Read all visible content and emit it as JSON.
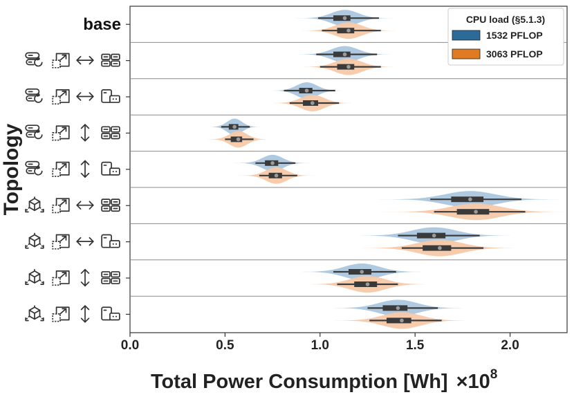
{
  "chart_data": {
    "type": "violin",
    "orientation": "horizontal",
    "xlabel": "Total Power Consumption [Wh]",
    "x_multiplier": "×10",
    "x_multiplier_exponent": "8",
    "ylabel": "Topology",
    "xlim": [
      0.0,
      2.3
    ],
    "xticks": [
      0.0,
      0.5,
      1.0,
      1.5,
      2.0
    ],
    "xtick_labels": [
      "0.0",
      "0.5",
      "1.0",
      "1.5",
      "2.0"
    ],
    "grid": false,
    "legend": {
      "title": "CPU load (§5.1.3)",
      "placement": "top-right",
      "entries": [
        "1532 PFLOP",
        "3063 PFLOP"
      ]
    },
    "series_colors": [
      "#aac6de",
      "#f5c9a8"
    ],
    "legend_colors": [
      "#2b6a99",
      "#e07b22"
    ],
    "categories": [
      {
        "label": "base",
        "icons": []
      },
      {
        "label": "",
        "icons": [
          "server-cycle-icon",
          "scale-out-icon",
          "horizontal-arrow-icon",
          "server-rack-multi-icon"
        ]
      },
      {
        "label": "",
        "icons": [
          "server-cycle-icon",
          "scale-out-icon",
          "horizontal-arrow-icon",
          "server-single-icon"
        ]
      },
      {
        "label": "",
        "icons": [
          "server-cycle-icon",
          "scale-out-icon",
          "vertical-arrow-icon",
          "server-rack-multi-icon"
        ]
      },
      {
        "label": "",
        "icons": [
          "server-cycle-icon",
          "scale-out-icon",
          "vertical-arrow-icon",
          "server-single-icon"
        ]
      },
      {
        "label": "",
        "icons": [
          "network-box-icon",
          "scale-out-icon",
          "horizontal-arrow-icon",
          "server-rack-multi-icon"
        ]
      },
      {
        "label": "",
        "icons": [
          "network-box-icon",
          "scale-out-icon",
          "horizontal-arrow-icon",
          "server-single-icon"
        ]
      },
      {
        "label": "",
        "icons": [
          "network-box-icon",
          "scale-out-icon",
          "vertical-arrow-icon",
          "server-rack-multi-icon"
        ]
      },
      {
        "label": "",
        "icons": [
          "network-box-icon",
          "scale-out-icon",
          "vertical-arrow-icon",
          "server-single-icon"
        ]
      }
    ],
    "series": [
      {
        "name": "1532 PFLOP",
        "violins": [
          {
            "min": 0.64,
            "q1": 1.07,
            "median": 1.13,
            "q3": 1.16,
            "max": 1.44,
            "wlo": 0.99,
            "whi": 1.31
          },
          {
            "min": 0.63,
            "q1": 1.07,
            "median": 1.13,
            "q3": 1.16,
            "max": 1.43,
            "wlo": 0.98,
            "whi": 1.3
          },
          {
            "min": 0.53,
            "q1": 0.89,
            "median": 0.93,
            "q3": 0.96,
            "max": 1.19,
            "wlo": 0.81,
            "whi": 1.08
          },
          {
            "min": 0.31,
            "q1": 0.52,
            "median": 0.55,
            "q3": 0.57,
            "max": 0.7,
            "wlo": 0.48,
            "whi": 0.63
          },
          {
            "min": 0.42,
            "q1": 0.71,
            "median": 0.75,
            "q3": 0.78,
            "max": 0.95,
            "wlo": 0.66,
            "whi": 0.87
          },
          {
            "min": 1.0,
            "q1": 1.69,
            "median": 1.79,
            "q3": 1.86,
            "max": 2.27,
            "wlo": 1.58,
            "whi": 2.06
          },
          {
            "min": 0.9,
            "q1": 1.51,
            "median": 1.6,
            "q3": 1.66,
            "max": 2.03,
            "wlo": 1.41,
            "whi": 1.84
          },
          {
            "min": 0.69,
            "q1": 1.15,
            "median": 1.22,
            "q3": 1.27,
            "max": 1.55,
            "wlo": 1.07,
            "whi": 1.4
          },
          {
            "min": 0.8,
            "q1": 1.33,
            "median": 1.41,
            "q3": 1.46,
            "max": 1.79,
            "wlo": 1.25,
            "whi": 1.62
          }
        ]
      },
      {
        "name": "3063 PFLOP",
        "violins": [
          {
            "min": 0.65,
            "q1": 1.09,
            "median": 1.15,
            "q3": 1.18,
            "max": 1.46,
            "wlo": 1.01,
            "whi": 1.32
          },
          {
            "min": 0.65,
            "q1": 1.09,
            "median": 1.15,
            "q3": 1.18,
            "max": 1.45,
            "wlo": 1.0,
            "whi": 1.32
          },
          {
            "min": 0.54,
            "q1": 0.91,
            "median": 0.96,
            "q3": 0.99,
            "max": 1.21,
            "wlo": 0.84,
            "whi": 1.1
          },
          {
            "min": 0.33,
            "q1": 0.53,
            "median": 0.57,
            "q3": 0.59,
            "max": 0.72,
            "wlo": 0.5,
            "whi": 0.65
          },
          {
            "min": 0.43,
            "q1": 0.73,
            "median": 0.77,
            "q3": 0.8,
            "max": 0.97,
            "wlo": 0.68,
            "whi": 0.88
          },
          {
            "min": 1.02,
            "q1": 1.72,
            "median": 1.82,
            "q3": 1.89,
            "max": 2.29,
            "wlo": 1.6,
            "whi": 2.08
          },
          {
            "min": 0.91,
            "q1": 1.54,
            "median": 1.63,
            "q3": 1.69,
            "max": 2.05,
            "wlo": 1.43,
            "whi": 1.86
          },
          {
            "min": 0.7,
            "q1": 1.18,
            "median": 1.25,
            "q3": 1.3,
            "max": 1.57,
            "wlo": 1.09,
            "whi": 1.41
          },
          {
            "min": 0.8,
            "q1": 1.35,
            "median": 1.43,
            "q3": 1.48,
            "max": 1.81,
            "wlo": 1.26,
            "whi": 1.64
          }
        ]
      }
    ]
  }
}
